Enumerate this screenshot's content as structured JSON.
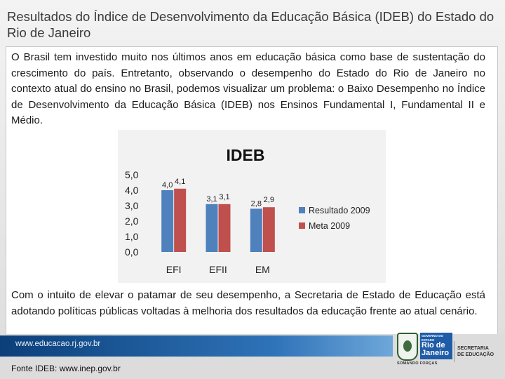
{
  "title": "Resultados do Índice de Desenvolvimento da Educação Básica (IDEB) do Estado do Rio de Janeiro",
  "paragraph1": "O Brasil tem investido muito nos últimos anos em educação básica como base de sustentação do crescimento do país. Entretanto, observando o desempenho do Estado do Rio de Janeiro no contexto atual do ensino no Brasil, podemos visualizar um problema: o Baixo Desempenho no Índice de Desenvolvimento da Educação Básica (IDEB) nos Ensinos Fundamental I, Fundamental II e Médio.",
  "paragraph2": "Com o intuito de elevar o patamar de seu desempenho, a Secretaria de Estado de Educação está adotando políticas públicas voltadas à melhoria dos resultados da educação frente ao atual cenário.",
  "footer": {
    "url": "www.educacao.rj.gov.br",
    "source": "Fonte IDEB: www.inep.gov.br",
    "logo_top": "GOVERNO DO",
    "logo_sub": "ESTADO",
    "logo_rio": "Rio de",
    "logo_janeiro": "Janeiro",
    "logo_slogan": "SOMANDO FORÇAS",
    "secretaria_line1": "SECRETARIA",
    "secretaria_line2": "DE EDUCAÇÃO"
  },
  "chart_data": {
    "type": "bar",
    "title": "IDEB",
    "categories": [
      "EFI",
      "EFII",
      "EM"
    ],
    "series": [
      {
        "name": "Resultado 2009",
        "values": [
          4.0,
          3.1,
          2.8
        ],
        "labels": [
          "4,0",
          "3,1",
          "2,8"
        ],
        "color": "#4f81bd"
      },
      {
        "name": "Meta 2009",
        "values": [
          4.1,
          3.1,
          2.9
        ],
        "labels": [
          "4,1",
          "3,1",
          "2,9"
        ],
        "color": "#c0504d"
      }
    ],
    "yticks": [
      "0,0",
      "1,0",
      "2,0",
      "3,0",
      "4,0",
      "5,0"
    ],
    "ylim": [
      0,
      5
    ],
    "xlabel": "",
    "ylabel": "",
    "legend": "right",
    "grid": false
  }
}
